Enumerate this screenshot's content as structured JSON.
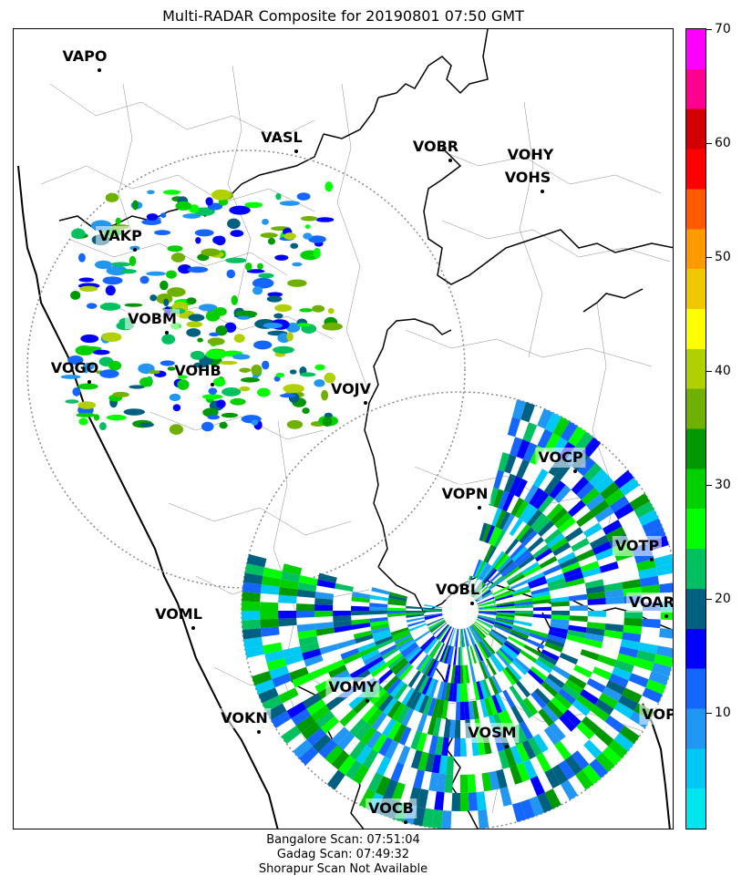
{
  "title": "Multi-RADAR Composite for 20190801 07:50 GMT",
  "stations": [
    {
      "code": "VAPO",
      "label": "VAPO"
    },
    {
      "code": "VASL",
      "label": "VASL"
    },
    {
      "code": "VOBR",
      "label": "VOBR"
    },
    {
      "code": "VOHY",
      "label": "VOHY"
    },
    {
      "code": "VOHS",
      "label": "VOHS"
    },
    {
      "code": "VAKP",
      "label": "VAKP"
    },
    {
      "code": "VOBM",
      "label": "VOBM"
    },
    {
      "code": "VOGO",
      "label": "VOGO"
    },
    {
      "code": "VOHB",
      "label": "VOHB"
    },
    {
      "code": "VOJV",
      "label": "VOJV"
    },
    {
      "code": "VOCP",
      "label": "VOCP"
    },
    {
      "code": "VOPN",
      "label": "VOPN"
    },
    {
      "code": "VOTP",
      "label": "VOTP"
    },
    {
      "code": "VOBL",
      "label": "VOBL"
    },
    {
      "code": "VOAR",
      "label": "VOAR"
    },
    {
      "code": "VOML",
      "label": "VOML"
    },
    {
      "code": "VOMY",
      "label": "VOMY"
    },
    {
      "code": "VOKN",
      "label": "VOKN"
    },
    {
      "code": "VOPC",
      "label": "VOPC"
    },
    {
      "code": "VOSM",
      "label": "VOSM"
    },
    {
      "code": "VOCB",
      "label": "VOCB"
    }
  ],
  "colorbar": {
    "min": 0,
    "max": 70,
    "ticks": [
      "10",
      "20",
      "30",
      "40",
      "50",
      "60",
      "70"
    ],
    "colors": [
      "#00e5ee",
      "#00c8f5",
      "#2196f3",
      "#1565ff",
      "#0000ff",
      "#006080",
      "#00c060",
      "#00ff00",
      "#00d000",
      "#009800",
      "#70b000",
      "#b0d000",
      "#ffff00",
      "#f0c800",
      "#ff9a00",
      "#ff5a00",
      "#ff0000",
      "#d00000",
      "#ff0090",
      "#ff00ff"
    ]
  },
  "footer": {
    "line1": "Bangalore Scan: 07:51:04",
    "line2": "Gadag Scan: 07:49:32",
    "line3": "Shorapur Scan Not Available"
  }
}
